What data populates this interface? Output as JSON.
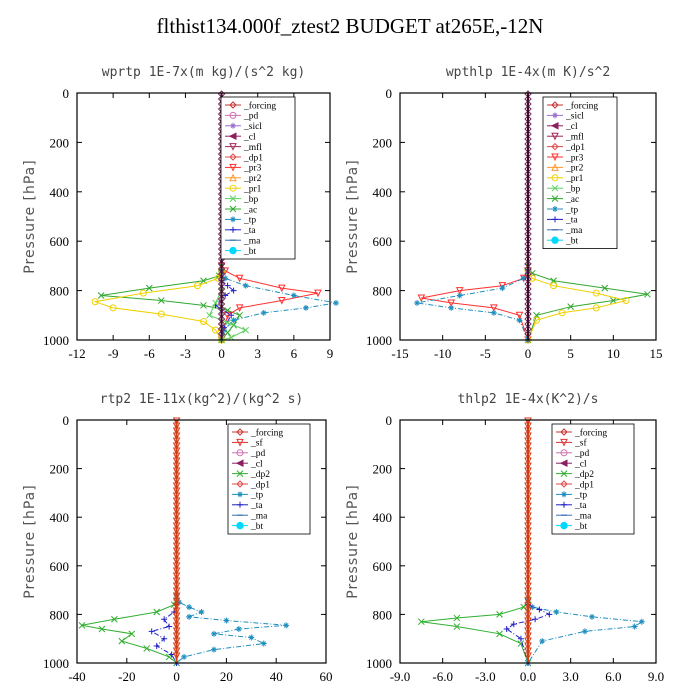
{
  "figure_title": "flthist134.000f_ztest2  BUDGET at265E,-12N",
  "colors": {
    "_forcing": "#c83232",
    "_pd": "#d070b0",
    "_sicl": "#9a6fd0",
    "_cl": "#8b2060",
    "_mfl": "#a0285a",
    "_dp1": "#e04b4b",
    "_pr3": "#ff3030",
    "_pr2": "#ff9a30",
    "_pr1": "#f0d000",
    "_bp": "#60d060",
    "_ac": "#30a830",
    "_tp": "#1f8fbf",
    "_ta": "#2020c8",
    "_ma": "#3b6fb0",
    "_bt": "#00d8ff",
    "_sf": "#e03030",
    "_dp2": "#30b030"
  },
  "chart_data": [
    {
      "type": "line",
      "title": "wprtp   1E-7x(m kg)/(s^2 kg)",
      "ylabel": "Pressure [hPa]",
      "xlim": [
        -12,
        9
      ],
      "ylim": [
        1000,
        0
      ],
      "xticks": [
        "-12",
        "-9",
        "-6",
        "-3",
        "0",
        "3",
        "6",
        "9"
      ],
      "yticks": [
        "0",
        "200",
        "400",
        "600",
        "800",
        "1000"
      ],
      "legend": [
        "_forcing",
        "_pd",
        "_sicl",
        "_cl",
        "_mfl",
        "_dp1",
        "_pr3",
        "_pr2",
        "_pr1",
        "_bp",
        "_ac",
        "_tp",
        "_ta",
        "_ma",
        "_bt"
      ],
      "series": [
        {
          "name": "_ac",
          "x": [
            0,
            -0.2,
            -1.5,
            -6,
            -10,
            -5,
            -1.5,
            0.5,
            1.5,
            1,
            0.5,
            0
          ],
          "y": [
            700,
            740,
            760,
            790,
            820,
            840,
            860,
            880,
            900,
            940,
            970,
            1000
          ]
        },
        {
          "name": "_pr3",
          "x": [
            0,
            0.3,
            1.5,
            5,
            8,
            5,
            1.5,
            0.5,
            0
          ],
          "y": [
            700,
            720,
            750,
            790,
            810,
            840,
            870,
            900,
            1000
          ]
        },
        {
          "name": "_pr1",
          "x": [
            0,
            -0.3,
            -2,
            -6.5,
            -10.5,
            -9,
            -5,
            -1.5,
            -0.5,
            0
          ],
          "y": [
            720,
            750,
            780,
            810,
            845,
            870,
            895,
            925,
            960,
            1000
          ]
        },
        {
          "name": "_tp",
          "x": [
            0,
            0.3,
            2,
            6,
            9.5,
            7,
            3.5,
            1,
            0.2,
            0
          ],
          "y": [
            720,
            750,
            780,
            820,
            850,
            870,
            890,
            920,
            960,
            1000
          ]
        },
        {
          "name": "_ta",
          "x": [
            0,
            0.5,
            1,
            0.3,
            -0.5,
            0.8,
            0.2,
            0
          ],
          "y": [
            760,
            780,
            800,
            820,
            860,
            900,
            950,
            1000
          ]
        },
        {
          "name": "_bp",
          "x": [
            0,
            -0.5,
            -1,
            0.5,
            2,
            0.8,
            0
          ],
          "y": [
            800,
            850,
            900,
            930,
            960,
            990,
            1000
          ]
        },
        {
          "name": "_forcing",
          "x": [
            0,
            0,
            0
          ],
          "y": [
            0,
            500,
            1000
          ]
        }
      ]
    },
    {
      "type": "line",
      "title": "wpthlp   1E-4x(m K)/s^2",
      "ylabel": "Pressure [hPa]",
      "xlim": [
        -15,
        15
      ],
      "ylim": [
        1000,
        0
      ],
      "xticks": [
        "-15",
        "-10",
        "-5",
        "0",
        "5",
        "10",
        "15"
      ],
      "yticks": [
        "0",
        "200",
        "400",
        "600",
        "800",
        "1000"
      ],
      "legend": [
        "_forcing",
        "_sicl",
        "_cl",
        "_mfl",
        "_dp1",
        "_pr3",
        "_pr2",
        "_pr1",
        "_bp",
        "_ac",
        "_tp",
        "_ta",
        "_ma",
        "_bt"
      ],
      "series": [
        {
          "name": "_ac",
          "x": [
            0,
            0.5,
            3,
            9,
            14,
            10,
            5,
            1,
            0
          ],
          "y": [
            700,
            730,
            760,
            790,
            815,
            840,
            865,
            900,
            1000
          ]
        },
        {
          "name": "_pr3",
          "x": [
            0,
            -0.5,
            -3,
            -8,
            -12.5,
            -9,
            -4,
            -1,
            0
          ],
          "y": [
            720,
            750,
            780,
            800,
            830,
            850,
            870,
            900,
            1000
          ]
        },
        {
          "name": "_pr1",
          "x": [
            0,
            0.5,
            3,
            8,
            11.5,
            8,
            4,
            1,
            0
          ],
          "y": [
            720,
            750,
            780,
            810,
            840,
            870,
            890,
            920,
            1000
          ]
        },
        {
          "name": "_tp",
          "x": [
            0,
            -0.5,
            -3,
            -8,
            -13,
            -9,
            -4,
            -1,
            0
          ],
          "y": [
            720,
            750,
            790,
            820,
            850,
            870,
            890,
            920,
            1000
          ]
        },
        {
          "name": "_sicl",
          "x": [
            0,
            0,
            0
          ],
          "y": [
            0,
            500,
            1000
          ]
        },
        {
          "name": "_forcing",
          "x": [
            0,
            0,
            0
          ],
          "y": [
            0,
            500,
            1000
          ]
        }
      ]
    },
    {
      "type": "line",
      "title": "rtp2   1E-11x(kg^2)/(kg^2 s)",
      "ylabel": "Pressure [hPa]",
      "xlim": [
        -40,
        60
      ],
      "ylim": [
        1000,
        0
      ],
      "xticks": [
        "-40",
        "-20",
        "0",
        "20",
        "40",
        "60"
      ],
      "yticks": [
        "0",
        "200",
        "400",
        "600",
        "800",
        "1000"
      ],
      "legend": [
        "_forcing",
        "_sf",
        "_pd",
        "_cl",
        "_dp2",
        "_dp1",
        "_tp",
        "_ta",
        "_ma",
        "_bt"
      ],
      "series": [
        {
          "name": "_dp2",
          "x": [
            0,
            -1,
            -8,
            -25,
            -38,
            -30,
            -18,
            -22,
            -12,
            -3,
            0
          ],
          "y": [
            730,
            760,
            790,
            820,
            845,
            860,
            880,
            910,
            940,
            975,
            1000
          ]
        },
        {
          "name": "_tp",
          "x": [
            0,
            1,
            5,
            10,
            5,
            20,
            44,
            25,
            15,
            30,
            35,
            15,
            3,
            0
          ],
          "y": [
            720,
            750,
            770,
            790,
            810,
            825,
            845,
            860,
            880,
            895,
            920,
            945,
            975,
            1000
          ]
        },
        {
          "name": "_ta",
          "x": [
            0,
            -1,
            -5,
            -3,
            -10,
            -5,
            -8,
            -2,
            0
          ],
          "y": [
            760,
            790,
            820,
            850,
            870,
            900,
            930,
            965,
            1000
          ]
        },
        {
          "name": "_forcing",
          "x": [
            0,
            0,
            0
          ],
          "y": [
            0,
            500,
            1000
          ]
        }
      ]
    },
    {
      "type": "line",
      "title": "thlp2   1E-4x(K^2)/s",
      "ylabel": "Pressure [hPa]",
      "xlim": [
        -9,
        9
      ],
      "ylim": [
        1000,
        0
      ],
      "xticks": [
        "-9.0",
        "-6.0",
        "-3.0",
        "0.0",
        "3.0",
        "6.0",
        "9.0"
      ],
      "yticks": [
        "0",
        "200",
        "400",
        "600",
        "800",
        "1000"
      ],
      "legend": [
        "_forcing",
        "_sf",
        "_pd",
        "_cl",
        "_dp2",
        "_dp1",
        "_tp",
        "_ta",
        "_ma",
        "_bt"
      ],
      "series": [
        {
          "name": "_dp2",
          "x": [
            0,
            -0.3,
            -2,
            -5,
            -7.5,
            -5,
            -2,
            -0.5,
            0
          ],
          "y": [
            740,
            770,
            800,
            815,
            830,
            850,
            880,
            920,
            1000
          ]
        },
        {
          "name": "_tp",
          "x": [
            0,
            0.3,
            2,
            4.5,
            8,
            7.5,
            4,
            1,
            0
          ],
          "y": [
            740,
            770,
            790,
            810,
            830,
            850,
            870,
            910,
            1000
          ]
        },
        {
          "name": "_ta",
          "x": [
            0,
            0.8,
            1.5,
            0.5,
            -1,
            -1.5,
            -0.5,
            0
          ],
          "y": [
            760,
            780,
            800,
            820,
            840,
            860,
            900,
            1000
          ]
        },
        {
          "name": "_forcing",
          "x": [
            0,
            0,
            0
          ],
          "y": [
            0,
            500,
            1000
          ]
        }
      ]
    }
  ]
}
